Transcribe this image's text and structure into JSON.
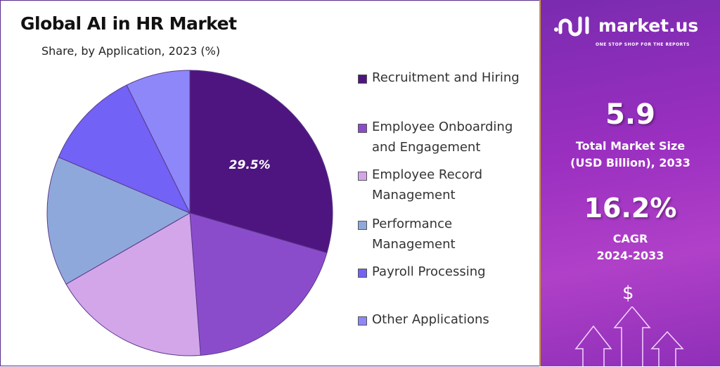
{
  "chart_data": {
    "type": "pie",
    "title": "Global AI in HR Market",
    "subtitle": "Share, by Application, 2023 (%)",
    "categories": [
      "Recruitment and Hiring",
      "Employee Onboarding and Engagement",
      "Employee Record Management",
      "Performance Management",
      "Payroll Processing",
      "Other Applications"
    ],
    "legend_lines": [
      [
        "Recruitment and Hiring"
      ],
      [
        "Employee Onboarding",
        "and Engagement"
      ],
      [
        "Employee Record",
        "Management"
      ],
      [
        "Performance",
        "Management"
      ],
      [
        "Payroll Processing"
      ],
      [
        "Other Applications"
      ]
    ],
    "values": [
      29.5,
      19.3,
      17.9,
      14.7,
      11.3,
      7.3
    ],
    "colors": [
      "#4e1580",
      "#8b4ccc",
      "#d3a6ea",
      "#8fa8db",
      "#7262f5",
      "#8e87fa"
    ],
    "data_label": "29.5%",
    "legend_placement": "right"
  },
  "sidebar": {
    "brand": "market.us",
    "tagline": "ONE STOP SHOP FOR THE REPORTS",
    "market_size": "5.9",
    "market_size_label_1": "Total Market Size",
    "market_size_label_2": "(USD Billion), 2033",
    "cagr": "16.2%",
    "cagr_label_1": "CAGR",
    "cagr_label_2": "2024-2033",
    "dollar_symbol": "$"
  }
}
